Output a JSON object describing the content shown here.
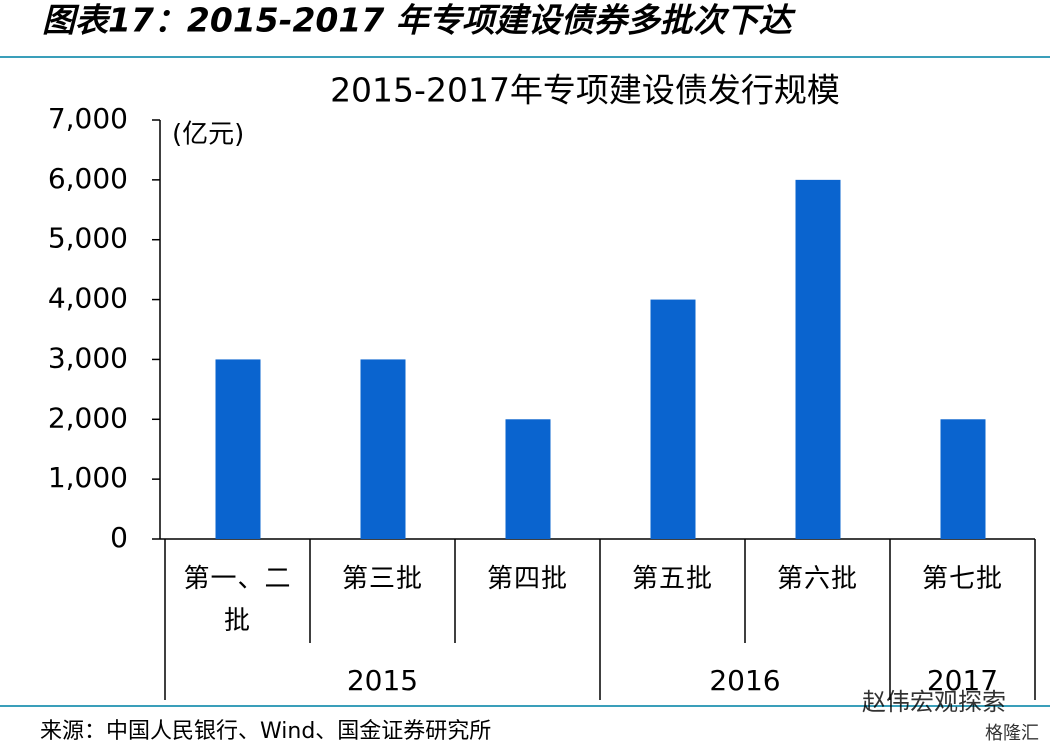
{
  "header": {
    "title": "图表17：2015-2017 年专项建设债券多批次下达"
  },
  "chart_data": {
    "type": "bar",
    "title": "2015-2017年专项建设债发行规模",
    "y_unit": "(亿元)",
    "categories": [
      "第一、二批",
      "第三批",
      "第四批",
      "第五批",
      "第六批",
      "第七批"
    ],
    "values": [
      3000,
      3000,
      2000,
      4000,
      6000,
      2000
    ],
    "color": "#0a64cf",
    "groups": [
      {
        "label": "2015",
        "count": 3
      },
      {
        "label": "2016",
        "count": 2
      },
      {
        "label": "2017",
        "count": 1
      }
    ],
    "ylim": [
      0,
      7000
    ],
    "yticks": [
      0,
      {
        "value": 1000,
        "label": "1,000"
      },
      {
        "value": 2000,
        "label": "2,000"
      },
      {
        "value": 3000,
        "label": "3,000"
      },
      {
        "value": 4000,
        "label": "4,000"
      },
      {
        "value": 5000,
        "label": "5,000"
      },
      {
        "value": 6000,
        "label": "6,000"
      },
      {
        "value": 7000,
        "label": "7,000"
      }
    ]
  },
  "source": "来源：中国人民银行、Wind、国金证券研究所",
  "watermark": {
    "account": "赵伟宏观探索",
    "site": "格隆汇"
  }
}
